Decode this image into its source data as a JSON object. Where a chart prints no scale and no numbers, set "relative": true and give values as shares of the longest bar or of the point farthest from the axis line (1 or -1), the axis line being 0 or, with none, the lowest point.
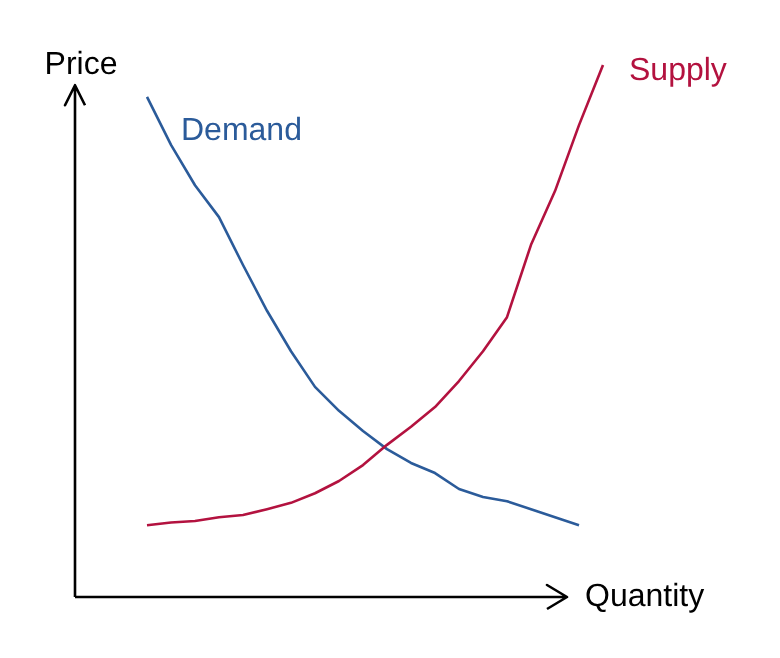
{
  "chart_data": {
    "type": "line",
    "relative": true,
    "xlabel": "Quantity",
    "ylabel": "Price",
    "categories": [
      null,
      null,
      null,
      null,
      null,
      null,
      null,
      null,
      null,
      null,
      null,
      null,
      null,
      null,
      null,
      null,
      null,
      null,
      null,
      null
    ],
    "series": [
      {
        "name": "Demand",
        "color": "#2b5b9a",
        "values": [
          0.94,
          0.85,
          0.774,
          0.714,
          0.624,
          0.538,
          0.462,
          0.395,
          0.35,
          0.312,
          0.278,
          0.252,
          0.233,
          0.203,
          0.188,
          0.18,
          0.165,
          0.15,
          0.135,
          null
        ]
      },
      {
        "name": "Supply",
        "color": "#b3123f",
        "values": [
          0.135,
          0.14,
          0.143,
          0.15,
          0.154,
          0.165,
          0.177,
          0.195,
          0.218,
          0.248,
          0.286,
          0.32,
          0.357,
          0.406,
          0.462,
          0.526,
          0.662,
          0.763,
          0.887,
          1.0
        ]
      }
    ]
  }
}
